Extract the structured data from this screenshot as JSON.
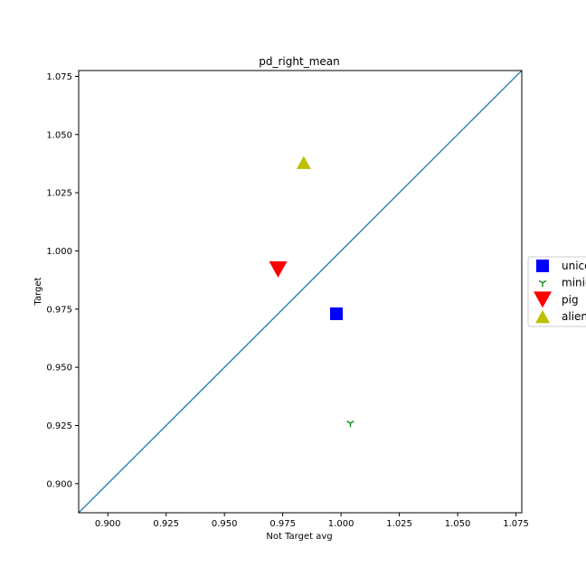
{
  "chart_data": {
    "type": "scatter",
    "title": "pd_right_mean",
    "xlabel": "Not Target avg",
    "ylabel": "Target",
    "xlim": [
      0.8875,
      1.0775
    ],
    "ylim": [
      0.8875,
      1.0775
    ],
    "xticks": [
      0.9,
      0.925,
      0.95,
      0.975,
      1.0,
      1.025,
      1.05,
      1.075
    ],
    "yticks": [
      0.9,
      0.925,
      0.95,
      0.975,
      1.0,
      1.025,
      1.05,
      1.075
    ],
    "xtick_labels": [
      "0.900",
      "0.925",
      "0.950",
      "0.975",
      "1.000",
      "1.025",
      "1.050",
      "1.075"
    ],
    "ytick_labels": [
      "0.900",
      "0.925",
      "0.950",
      "0.975",
      "1.000",
      "1.025",
      "1.050",
      "1.075"
    ],
    "grid": false,
    "legend_position": "right-outside",
    "reference_line": {
      "from": [
        0.8875,
        0.8875
      ],
      "to": [
        1.0775,
        1.0775
      ],
      "color": "#1f77b4"
    },
    "series": [
      {
        "name": "unicorn",
        "legend_label": "unico",
        "marker": "square",
        "color": "#0000ff",
        "x": [
          0.998
        ],
        "y": [
          0.973
        ]
      },
      {
        "name": "minion",
        "legend_label": "minio",
        "marker": "tri-down",
        "color": "#008000",
        "x": [
          1.004
        ],
        "y": [
          0.926
        ]
      },
      {
        "name": "pig",
        "legend_label": "pig",
        "marker": "triangle-down",
        "color": "#ff0000",
        "x": [
          0.973
        ],
        "y": [
          0.992
        ]
      },
      {
        "name": "alien",
        "legend_label": "alien",
        "marker": "triangle-up",
        "color": "#bfbf00",
        "x": [
          0.984
        ],
        "y": [
          1.038
        ]
      }
    ]
  }
}
